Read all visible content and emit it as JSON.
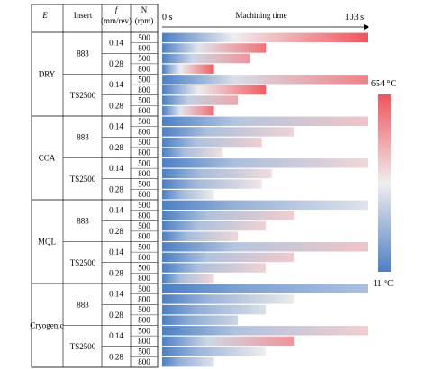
{
  "header": {
    "environment_label": "E",
    "insert_label": "Insert",
    "feed_label": "f",
    "feed_unit": "(mm/rev)",
    "speed_label": "N",
    "speed_unit": "(rpm)",
    "time_start_label": "0 s",
    "time_axis_label": "Machining time",
    "time_end_label": "103 s"
  },
  "colorbar": {
    "max_label": "654 °C",
    "min_label": "11 °C",
    "high_color": "#f0545c",
    "mid_color": "#f0eeee",
    "low_color": "#4c7fc4"
  },
  "chart_data": {
    "type": "heatmap",
    "x_range": [
      0,
      103
    ],
    "value_range": [
      11,
      654
    ],
    "groups": [
      {
        "environment": "DRY",
        "inserts": [
          {
            "name": "883",
            "feeds": [
              {
                "feed": "0.14",
                "rows": [
                  {
                    "rpm": "500",
                    "duration": 103,
                    "end_temp": 654
                  },
                  {
                    "rpm": "800",
                    "duration": 52,
                    "end_temp": 590
                  }
                ]
              },
              {
                "feed": "0.28",
                "rows": [
                  {
                    "rpm": "500",
                    "duration": 44,
                    "end_temp": 520
                  },
                  {
                    "rpm": "800",
                    "duration": 26,
                    "end_temp": 640
                  }
                ]
              }
            ]
          },
          {
            "name": "TS2500",
            "feeds": [
              {
                "feed": "0.14",
                "rows": [
                  {
                    "rpm": "500",
                    "duration": 103,
                    "end_temp": 560
                  },
                  {
                    "rpm": "800",
                    "duration": 52,
                    "end_temp": 640
                  }
                ]
              },
              {
                "feed": "0.28",
                "rows": [
                  {
                    "rpm": "500",
                    "duration": 38,
                    "end_temp": 480
                  },
                  {
                    "rpm": "800",
                    "duration": 26,
                    "end_temp": 600
                  }
                ]
              }
            ]
          }
        ]
      },
      {
        "environment": "CCA",
        "inserts": [
          {
            "name": "883",
            "feeds": [
              {
                "feed": "0.14",
                "rows": [
                  {
                    "rpm": "500",
                    "duration": 103,
                    "end_temp": 420
                  },
                  {
                    "rpm": "800",
                    "duration": 66,
                    "end_temp": 390
                  }
                ]
              },
              {
                "feed": "0.28",
                "rows": [
                  {
                    "rpm": "500",
                    "duration": 50,
                    "end_temp": 400
                  },
                  {
                    "rpm": "800",
                    "duration": 30,
                    "end_temp": 360
                  }
                ]
              }
            ]
          },
          {
            "name": "TS2500",
            "feeds": [
              {
                "feed": "0.14",
                "rows": [
                  {
                    "rpm": "500",
                    "duration": 103,
                    "end_temp": 380
                  },
                  {
                    "rpm": "800",
                    "duration": 55,
                    "end_temp": 370
                  }
                ]
              },
              {
                "feed": "0.28",
                "rows": [
                  {
                    "rpm": "500",
                    "duration": 50,
                    "end_temp": 350
                  },
                  {
                    "rpm": "800",
                    "duration": 26,
                    "end_temp": 330
                  }
                ]
              }
            ]
          }
        ]
      },
      {
        "environment": "MQL",
        "inserts": [
          {
            "name": "883",
            "feeds": [
              {
                "feed": "0.14",
                "rows": [
                  {
                    "rpm": "500",
                    "duration": 103,
                    "end_temp": 300
                  },
                  {
                    "rpm": "800",
                    "duration": 66,
                    "end_temp": 400
                  }
                ]
              },
              {
                "feed": "0.28",
                "rows": [
                  {
                    "rpm": "500",
                    "duration": 52,
                    "end_temp": 390
                  },
                  {
                    "rpm": "800",
                    "duration": 38,
                    "end_temp": 380
                  }
                ]
              }
            ]
          },
          {
            "name": "TS2500",
            "feeds": [
              {
                "feed": "0.14",
                "rows": [
                  {
                    "rpm": "500",
                    "duration": 103,
                    "end_temp": 420
                  },
                  {
                    "rpm": "800",
                    "duration": 66,
                    "end_temp": 410
                  }
                ]
              },
              {
                "feed": "0.28",
                "rows": [
                  {
                    "rpm": "500",
                    "duration": 52,
                    "end_temp": 390
                  },
                  {
                    "rpm": "800",
                    "duration": 26,
                    "end_temp": 380
                  }
                ]
              }
            ]
          }
        ]
      },
      {
        "environment": "Cryogenic",
        "inserts": [
          {
            "name": "883",
            "feeds": [
              {
                "feed": "0.14",
                "rows": [
                  {
                    "rpm": "500",
                    "duration": 103,
                    "end_temp": 200
                  },
                  {
                    "rpm": "800",
                    "duration": 66,
                    "end_temp": 320
                  }
                ]
              },
              {
                "feed": "0.28",
                "rows": [
                  {
                    "rpm": "500",
                    "duration": 52,
                    "end_temp": 290
                  },
                  {
                    "rpm": "800",
                    "duration": 38,
                    "end_temp": 260
                  }
                ]
              }
            ]
          },
          {
            "name": "TS2500",
            "feeds": [
              {
                "feed": "0.14",
                "rows": [
                  {
                    "rpm": "500",
                    "duration": 103,
                    "end_temp": 400
                  },
                  {
                    "rpm": "800",
                    "duration": 66,
                    "end_temp": 520
                  }
                ]
              },
              {
                "feed": "0.28",
                "rows": [
                  {
                    "rpm": "500",
                    "duration": 52,
                    "end_temp": 330
                  },
                  {
                    "rpm": "800",
                    "duration": 26,
                    "end_temp": 300
                  }
                ]
              }
            ]
          }
        ]
      }
    ]
  }
}
